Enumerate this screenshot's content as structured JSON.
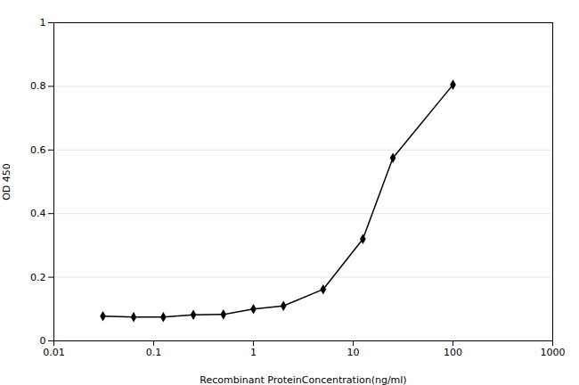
{
  "chart_data": {
    "type": "line",
    "xlabel": "Recombinant ProteinConcentration(ng/ml)",
    "ylabel": "OD 450",
    "x": [
      0.031,
      0.063,
      0.125,
      0.25,
      0.5,
      1.0,
      2.0,
      5.0,
      12.5,
      25.0,
      100.0
    ],
    "values": [
      0.078,
      0.075,
      0.075,
      0.082,
      0.083,
      0.1,
      0.11,
      0.162,
      0.32,
      0.575,
      0.805
    ],
    "log": "x",
    "xlim": [
      0.01,
      1000
    ],
    "xticks": [
      0.01,
      0.1,
      1,
      10,
      100,
      1000
    ],
    "ylim": [
      0,
      1.0
    ],
    "yticks": [
      0,
      0.2,
      0.4,
      0.6,
      0.8,
      1
    ],
    "grid": "y",
    "marker": "diamond"
  }
}
